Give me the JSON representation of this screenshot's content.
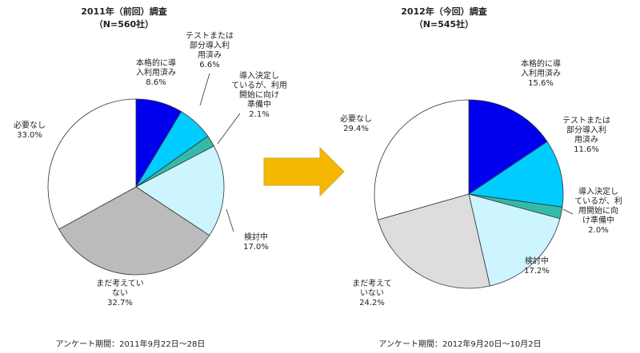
{
  "chart_data": [
    {
      "type": "pie",
      "title": "2011年（前回）調査",
      "subtitle": "（N=560社）",
      "slices": [
        {
          "label": [
            "本格的に導",
            "入利用済み"
          ],
          "value": 8.6,
          "display": "8.6%",
          "color": "#0000ee"
        },
        {
          "label": [
            "テストまたは",
            "部分導入利",
            "用済み"
          ],
          "value": 6.6,
          "display": "6.6%",
          "color": "#00ccff"
        },
        {
          "label": [
            "導入決定し",
            "ているが、利用",
            "開始に向け",
            "準備中"
          ],
          "value": 2.1,
          "display": "2.1%",
          "color": "#33bbaa"
        },
        {
          "label": [
            "検討中"
          ],
          "value": 17.0,
          "display": "17.0%",
          "color": "#ccf5ff"
        },
        {
          "label": [
            "まだ考えてい",
            "ない"
          ],
          "value": 32.7,
          "display": "32.7%",
          "color": "#bbbbbb"
        },
        {
          "label": [
            "必要なし"
          ],
          "value": 33.0,
          "display": "33.0%",
          "color": "#ffffff"
        }
      ],
      "period": "アンケート期間：2011年9月22日～28日"
    },
    {
      "type": "pie",
      "title": "2012年（今回）調査",
      "subtitle": "（N=545社）",
      "slices": [
        {
          "label": [
            "本格的に導",
            "入利用済み"
          ],
          "value": 15.6,
          "display": "15.6%",
          "color": "#0000ee"
        },
        {
          "label": [
            "テストまたは",
            "部分導入利",
            "用済み"
          ],
          "value": 11.6,
          "display": "11.6%",
          "color": "#00ccff"
        },
        {
          "label": [
            "導入決定し",
            "ているが、利",
            "用開始に向",
            "け準備中"
          ],
          "value": 2.0,
          "display": "2.0%",
          "color": "#33bbaa"
        },
        {
          "label": [
            "検討中"
          ],
          "value": 17.2,
          "display": "17.2%",
          "color": "#ccf5ff"
        },
        {
          "label": [
            "まだ考えて",
            "いない"
          ],
          "value": 24.2,
          "display": "24.2%",
          "color": "#dddddd"
        },
        {
          "label": [
            "必要なし"
          ],
          "value": 29.4,
          "display": "29.4%",
          "color": "#ffffff"
        }
      ],
      "period": "アンケート期間：2012年9月20日～10月2日"
    }
  ],
  "arrow": {
    "color": "#f5b800",
    "border": "#ccaa33"
  }
}
